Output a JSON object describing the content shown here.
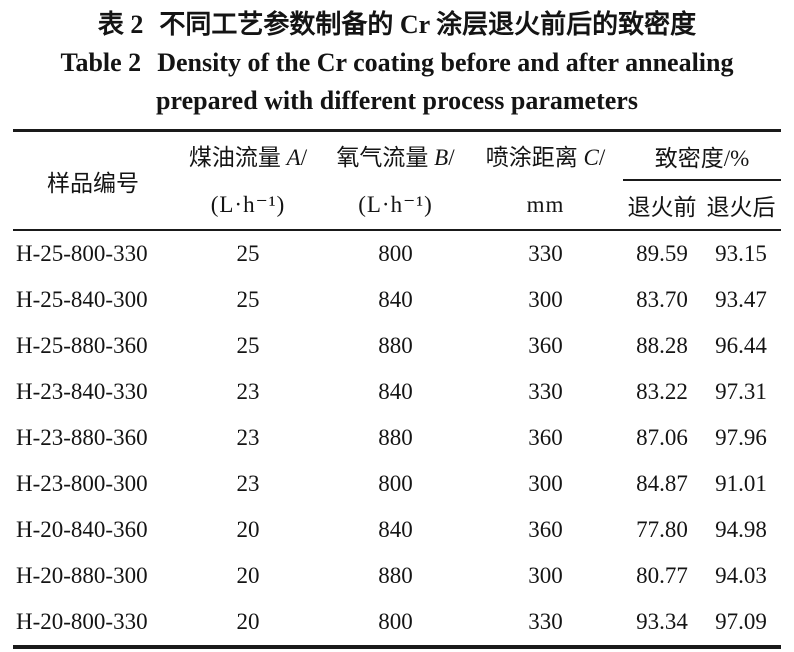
{
  "caption": {
    "zh_label": "表 2",
    "zh_text": "不同工艺参数制备的 Cr 涂层退火前后的致密度",
    "en_label": "Table 2",
    "en_line1": "Density of the Cr coating before and after annealing",
    "en_line2": "prepared with different process parameters"
  },
  "table": {
    "header": {
      "sample": "样品编号",
      "kerosene": {
        "zh": "煤油流量 ",
        "var": "A",
        "slash": "/",
        "unit": "(L·h⁻¹)"
      },
      "oxygen": {
        "zh": "氧气流量 ",
        "var": "B",
        "slash": "/",
        "unit": "(L·h⁻¹)"
      },
      "distance": {
        "zh": "喷涂距离 ",
        "var": "C",
        "slash": "/",
        "unit": "mm"
      },
      "density_group": "致密度/%",
      "before": "退火前",
      "after": "退火后"
    },
    "rows": [
      {
        "sample": "H-25-800-330",
        "kerosene": "25",
        "oxygen": "800",
        "distance": "330",
        "before": "89.59",
        "after": "93.15"
      },
      {
        "sample": "H-25-840-300",
        "kerosene": "25",
        "oxygen": "840",
        "distance": "300",
        "before": "83.70",
        "after": "93.47"
      },
      {
        "sample": "H-25-880-360",
        "kerosene": "25",
        "oxygen": "880",
        "distance": "360",
        "before": "88.28",
        "after": "96.44"
      },
      {
        "sample": "H-23-840-330",
        "kerosene": "23",
        "oxygen": "840",
        "distance": "330",
        "before": "83.22",
        "after": "97.31"
      },
      {
        "sample": "H-23-880-360",
        "kerosene": "23",
        "oxygen": "880",
        "distance": "360",
        "before": "87.06",
        "after": "97.96"
      },
      {
        "sample": "H-23-800-300",
        "kerosene": "23",
        "oxygen": "800",
        "distance": "300",
        "before": "84.87",
        "after": "91.01"
      },
      {
        "sample": "H-20-840-360",
        "kerosene": "20",
        "oxygen": "840",
        "distance": "360",
        "before": "77.80",
        "after": "94.98"
      },
      {
        "sample": "H-20-880-300",
        "kerosene": "20",
        "oxygen": "880",
        "distance": "300",
        "before": "80.77",
        "after": "94.03"
      },
      {
        "sample": "H-20-800-330",
        "kerosene": "20",
        "oxygen": "800",
        "distance": "330",
        "before": "93.34",
        "after": "97.09"
      }
    ],
    "text_color": "#141414",
    "rule_color": "#1a1a1a",
    "background": "#ffffff"
  }
}
